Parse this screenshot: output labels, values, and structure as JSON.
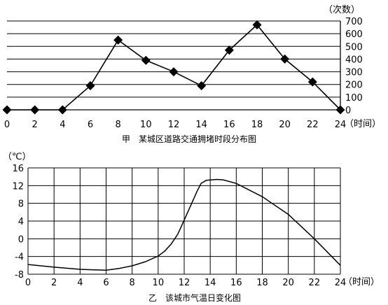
{
  "chart_data": [
    {
      "type": "line",
      "title": "甲　某城区道路交通拥堵时段分布图",
      "xlabel": "（时间）",
      "ylabel": "（次数）",
      "x_ticks": [
        "0",
        "2",
        "4",
        "6",
        "8",
        "10",
        "12",
        "14",
        "16",
        "18",
        "20",
        "22",
        "24"
      ],
      "y_ticks": [
        "0",
        "100",
        "200",
        "300",
        "400",
        "500",
        "600",
        "700"
      ],
      "xlim": [
        0,
        24
      ],
      "ylim": [
        0,
        700
      ],
      "grid": "horizontal",
      "marker": "diamond",
      "series": [
        {
          "x": [
            0,
            2,
            4,
            6,
            8,
            10,
            12,
            14,
            16,
            18,
            20,
            22,
            24
          ],
          "values": [
            0,
            0,
            0,
            190,
            550,
            390,
            300,
            190,
            470,
            670,
            400,
            220,
            0
          ]
        }
      ]
    },
    {
      "type": "line",
      "title": "乙　该城市气温日变化图",
      "xlabel": "（时间）",
      "ylabel": "（℃）",
      "x_ticks": [
        "0",
        "2",
        "4",
        "6",
        "8",
        "10",
        "12",
        "14",
        "16",
        "18",
        "20",
        "22",
        "24"
      ],
      "y_ticks": [
        "-8",
        "-4",
        "0",
        "4",
        "8",
        "12",
        "16"
      ],
      "xlim": [
        0,
        24
      ],
      "ylim": [
        -8,
        16
      ],
      "grid": "both",
      "series": [
        {
          "x": [
            0,
            2,
            4,
            6,
            7,
            8,
            9,
            10,
            10.5,
            11,
            11.5,
            12,
            12.5,
            13,
            13.3,
            13.7,
            14.5,
            15,
            16,
            18,
            20,
            22,
            24
          ],
          "values": [
            -5.8,
            -6.4,
            -6.9,
            -7.1,
            -6.7,
            -6.1,
            -5.2,
            -3.9,
            -2.8,
            -1.2,
            1,
            4.2,
            7.5,
            10.8,
            12.5,
            13.2,
            13.4,
            13.3,
            12.5,
            9.5,
            5.5,
            0,
            -6
          ]
        }
      ]
    }
  ]
}
